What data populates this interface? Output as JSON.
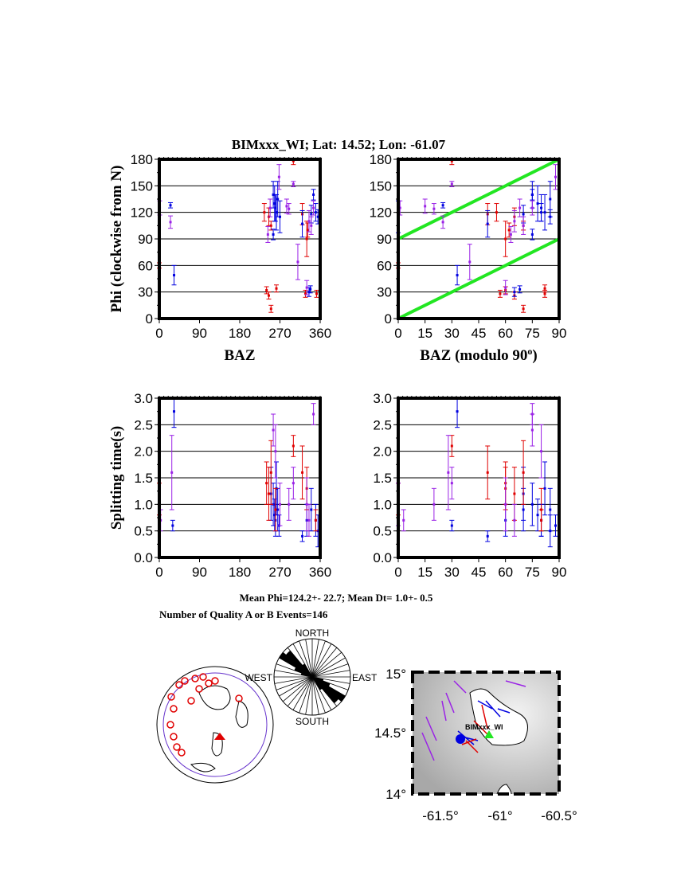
{
  "title": "BIMxxx_WI; Lat:  14.52;  Lon:  -61.07",
  "summary": {
    "mean_line": "Mean Phi=124.2+- 22.7; Mean Dt=  1.0+-  0.5",
    "count_line": "Number of Quality A or B Events=146"
  },
  "colors": {
    "red": "#e00000",
    "blue": "#0000e0",
    "purple": "#9a22e6",
    "green": "#22e622"
  },
  "chart_data": [
    {
      "id": "phi_baz",
      "type": "scatter",
      "xlabel": "BAZ",
      "ylabel": "Phi (clockwise from N)",
      "xlim": [
        0,
        360
      ],
      "ylim": [
        0,
        180
      ],
      "xticks": [
        "0",
        "90",
        "180",
        "270",
        "360"
      ],
      "yticks": [
        "0",
        "30",
        "60",
        "90",
        "120",
        "150",
        "180"
      ],
      "grid": "horizontal",
      "field": "phi"
    },
    {
      "id": "phi_baz90",
      "type": "scatter",
      "xlabel": "BAZ (modulo 90",
      "xlabel_sup": "o",
      "xlabel_end": ")",
      "xlim": [
        0,
        90
      ],
      "ylim": [
        0,
        180
      ],
      "xticks": [
        "0",
        "15",
        "30",
        "45",
        "60",
        "75",
        "90"
      ],
      "yticks": [
        "0",
        "30",
        "60",
        "90",
        "120",
        "150",
        "180"
      ],
      "grid": "horizontal",
      "field": "phi",
      "modulo": 90,
      "reference_lines": [
        {
          "from": [
            0,
            0
          ],
          "to": [
            90,
            90
          ]
        },
        {
          "from": [
            0,
            90
          ],
          "to": [
            90,
            180
          ]
        }
      ]
    },
    {
      "id": "dt_baz",
      "type": "scatter",
      "xlabel": "",
      "ylabel": "Splitting time(s)",
      "xlim": [
        0,
        360
      ],
      "ylim": [
        0,
        3
      ],
      "xticks": [
        "0",
        "90",
        "180",
        "270",
        "360"
      ],
      "yticks": [
        "0.0",
        "0.5",
        "1.0",
        "1.5",
        "2.0",
        "2.5",
        "3.0"
      ],
      "grid": "horizontal",
      "field": "dt"
    },
    {
      "id": "dt_baz90",
      "type": "scatter",
      "xlabel": "",
      "xlim": [
        0,
        90
      ],
      "ylim": [
        0,
        3
      ],
      "xticks": [
        "0",
        "15",
        "30",
        "45",
        "60",
        "75",
        "90"
      ],
      "yticks": [
        "0.0",
        "0.5",
        "1.0",
        "1.5",
        "2.0",
        "2.5",
        "3.0"
      ],
      "grid": "horizontal",
      "field": "dt",
      "modulo": 90
    }
  ],
  "measurements": {
    "phi": [
      [
        0,
        60,
        3,
        "red"
      ],
      [
        240,
        32,
        4,
        "red"
      ],
      [
        245,
        26,
        4,
        "red"
      ],
      [
        250,
        11,
        4,
        "red"
      ],
      [
        262,
        34,
        4,
        "red"
      ],
      [
        300,
        178,
        4,
        "red"
      ],
      [
        327,
        28,
        4,
        "red"
      ],
      [
        330,
        90,
        20,
        "red"
      ],
      [
        352,
        28,
        4,
        "red"
      ],
      [
        235,
        120,
        10,
        "red"
      ],
      [
        245,
        115,
        10,
        "red"
      ],
      [
        250,
        105,
        5,
        "red"
      ],
      [
        320,
        118,
        12,
        "red"
      ],
      [
        332,
        100,
        8,
        "red"
      ],
      [
        25,
        128,
        3,
        "blue"
      ],
      [
        33,
        49,
        11,
        "blue"
      ],
      [
        255,
        140,
        15,
        "blue"
      ],
      [
        258,
        130,
        20,
        "blue"
      ],
      [
        260,
        125,
        15,
        "blue"
      ],
      [
        262,
        120,
        20,
        "blue"
      ],
      [
        255,
        95,
        6,
        "blue"
      ],
      [
        265,
        135,
        20,
        "blue"
      ],
      [
        270,
        115,
        18,
        "blue"
      ],
      [
        320,
        107,
        15,
        "blue"
      ],
      [
        335,
        30,
        5,
        "blue"
      ],
      [
        340,
        118,
        10,
        "blue"
      ],
      [
        345,
        140,
        6,
        "blue"
      ],
      [
        350,
        120,
        10,
        "blue"
      ],
      [
        355,
        115,
        8,
        "blue"
      ],
      [
        338,
        33,
        4,
        "blue"
      ],
      [
        1,
        125,
        8,
        "purple"
      ],
      [
        25,
        109,
        7,
        "purple"
      ],
      [
        243,
        95,
        9,
        "purple"
      ],
      [
        248,
        125,
        10,
        "purple"
      ],
      [
        268,
        160,
        14,
        "purple"
      ],
      [
        285,
        127,
        8,
        "purple"
      ],
      [
        290,
        124,
        6,
        "purple"
      ],
      [
        300,
        152,
        3,
        "purple"
      ],
      [
        310,
        64,
        20,
        "purple"
      ],
      [
        330,
        35,
        8,
        "purple"
      ],
      [
        335,
        110,
        12,
        "purple"
      ],
      [
        340,
        105,
        10,
        "purple"
      ],
      [
        345,
        125,
        8,
        "purple"
      ]
    ],
    "dt": [
      [
        30,
        0.6,
        0.1,
        "blue"
      ],
      [
        33,
        2.75,
        0.3,
        "blue"
      ],
      [
        250,
        1.2,
        0.5,
        "blue"
      ],
      [
        255,
        1.0,
        0.4,
        "blue"
      ],
      [
        258,
        0.8,
        0.3,
        "blue"
      ],
      [
        260,
        0.7,
        0.3,
        "blue"
      ],
      [
        262,
        1.3,
        0.5,
        "blue"
      ],
      [
        265,
        0.9,
        0.4,
        "blue"
      ],
      [
        268,
        0.6,
        0.2,
        "blue"
      ],
      [
        320,
        0.4,
        0.1,
        "blue"
      ],
      [
        330,
        0.7,
        0.3,
        "blue"
      ],
      [
        340,
        0.9,
        0.4,
        "blue"
      ],
      [
        350,
        0.7,
        0.3,
        "blue"
      ],
      [
        355,
        0.5,
        0.3,
        "blue"
      ],
      [
        0,
        1.1,
        0.3,
        "red"
      ],
      [
        240,
        1.4,
        0.4,
        "red"
      ],
      [
        245,
        1.2,
        0.5,
        "red"
      ],
      [
        250,
        1.6,
        0.6,
        "red"
      ],
      [
        260,
        0.9,
        0.4,
        "red"
      ],
      [
        300,
        2.1,
        0.2,
        "red"
      ],
      [
        320,
        1.6,
        0.5,
        "red"
      ],
      [
        330,
        1.3,
        0.4,
        "red"
      ],
      [
        350,
        0.7,
        0.2,
        "red"
      ],
      [
        3,
        0.7,
        0.2,
        "purple"
      ],
      [
        28,
        1.6,
        0.7,
        "purple"
      ],
      [
        255,
        2.4,
        0.3,
        "purple"
      ],
      [
        260,
        2.0,
        0.5,
        "purple"
      ],
      [
        270,
        1.0,
        0.4,
        "purple"
      ],
      [
        290,
        1.0,
        0.3,
        "purple"
      ],
      [
        300,
        1.4,
        0.3,
        "purple"
      ],
      [
        330,
        1.0,
        0.5,
        "purple"
      ],
      [
        335,
        0.7,
        0.3,
        "purple"
      ],
      [
        345,
        2.7,
        0.2,
        "purple"
      ]
    ]
  },
  "rose": {
    "labels": {
      "north": "NORTH",
      "south": "SOUTH",
      "east": "EAST",
      "west": "WEST"
    },
    "bin_width_deg": 10,
    "counts": [
      1,
      1,
      1,
      1,
      1,
      1,
      1,
      1,
      1,
      2,
      3,
      5,
      10,
      9,
      4,
      2,
      1,
      1
    ]
  },
  "regional_map": {
    "station_label": "BIMxxx_WI",
    "lat_labels": [
      "14",
      "14.5",
      "15"
    ],
    "lon_labels": [
      "-61.5",
      "-61",
      "-60.5"
    ],
    "degree_sign": "°"
  }
}
